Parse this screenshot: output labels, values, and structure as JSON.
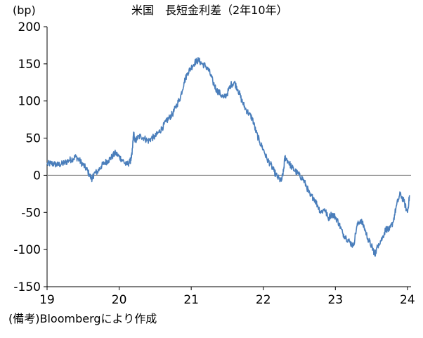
{
  "chart_data": {
    "type": "line",
    "title": "米国　長短金利差（2年10年）",
    "ylabel": "(bp)",
    "xlabel": "",
    "source_note": "(備考)Bloombergにより作成",
    "x_ticks": [
      "19",
      "20",
      "21",
      "22",
      "23",
      "24"
    ],
    "y_ticks": [
      "200",
      "150",
      "100",
      "50",
      "0",
      "-50",
      "-100",
      "-150"
    ],
    "xlim": [
      2019.0,
      2024.05
    ],
    "ylim": [
      -150,
      200
    ],
    "grid": false,
    "legend": "none",
    "zero_line": true,
    "colors": {
      "line": "#4a7ebb",
      "axis": "#000000",
      "zero_line": "#7f7f7f"
    },
    "series": [
      {
        "x": [
          2019.0,
          2019.05,
          2019.1,
          2019.15,
          2019.2,
          2019.25,
          2019.3,
          2019.35,
          2019.4,
          2019.45,
          2019.5,
          2019.55,
          2019.6,
          2019.63,
          2019.65,
          2019.7,
          2019.75,
          2019.8,
          2019.85,
          2019.9,
          2019.95,
          2020.0,
          2020.05,
          2020.1,
          2020.15,
          2020.18,
          2020.2,
          2020.22,
          2020.25,
          2020.3,
          2020.35,
          2020.4,
          2020.45,
          2020.5,
          2020.55,
          2020.6,
          2020.65,
          2020.7,
          2020.75,
          2020.8,
          2020.85,
          2020.9,
          2020.95,
          2021.0,
          2021.05,
          2021.1,
          2021.15,
          2021.2,
          2021.25,
          2021.3,
          2021.35,
          2021.4,
          2021.45,
          2021.5,
          2021.55,
          2021.6,
          2021.65,
          2021.7,
          2021.75,
          2021.8,
          2021.85,
          2021.9,
          2021.95,
          2022.0,
          2022.05,
          2022.1,
          2022.15,
          2022.2,
          2022.25,
          2022.28,
          2022.3,
          2022.35,
          2022.4,
          2022.45,
          2022.5,
          2022.55,
          2022.6,
          2022.65,
          2022.7,
          2022.75,
          2022.8,
          2022.85,
          2022.9,
          2022.95,
          2023.0,
          2023.05,
          2023.1,
          2023.15,
          2023.2,
          2023.25,
          2023.3,
          2023.35,
          2023.4,
          2023.45,
          2023.5,
          2023.53,
          2023.55,
          2023.6,
          2023.65,
          2023.7,
          2023.75,
          2023.8,
          2023.85,
          2023.9,
          2023.95,
          2024.0,
          2024.03
        ],
        "values": [
          15,
          16,
          15,
          14,
          15,
          17,
          20,
          22,
          25,
          20,
          14,
          8,
          -2,
          -5,
          2,
          5,
          12,
          17,
          20,
          25,
          30,
          25,
          20,
          14,
          18,
          28,
          58,
          45,
          50,
          53,
          50,
          46,
          50,
          52,
          58,
          64,
          72,
          78,
          84,
          95,
          105,
          125,
          138,
          145,
          152,
          155,
          150,
          147,
          140,
          126,
          115,
          110,
          104,
          110,
          122,
          125,
          115,
          101,
          90,
          83,
          76,
          58,
          45,
          35,
          22,
          15,
          5,
          -3,
          -8,
          5,
          25,
          18,
          10,
          5,
          0,
          -5,
          -15,
          -28,
          -30,
          -40,
          -50,
          -45,
          -58,
          -52,
          -56,
          -65,
          -78,
          -84,
          -90,
          -95,
          -68,
          -60,
          -70,
          -85,
          -95,
          -102,
          -106,
          -92,
          -85,
          -72,
          -74,
          -63,
          -40,
          -25,
          -35,
          -50,
          -27
        ]
      }
    ]
  }
}
